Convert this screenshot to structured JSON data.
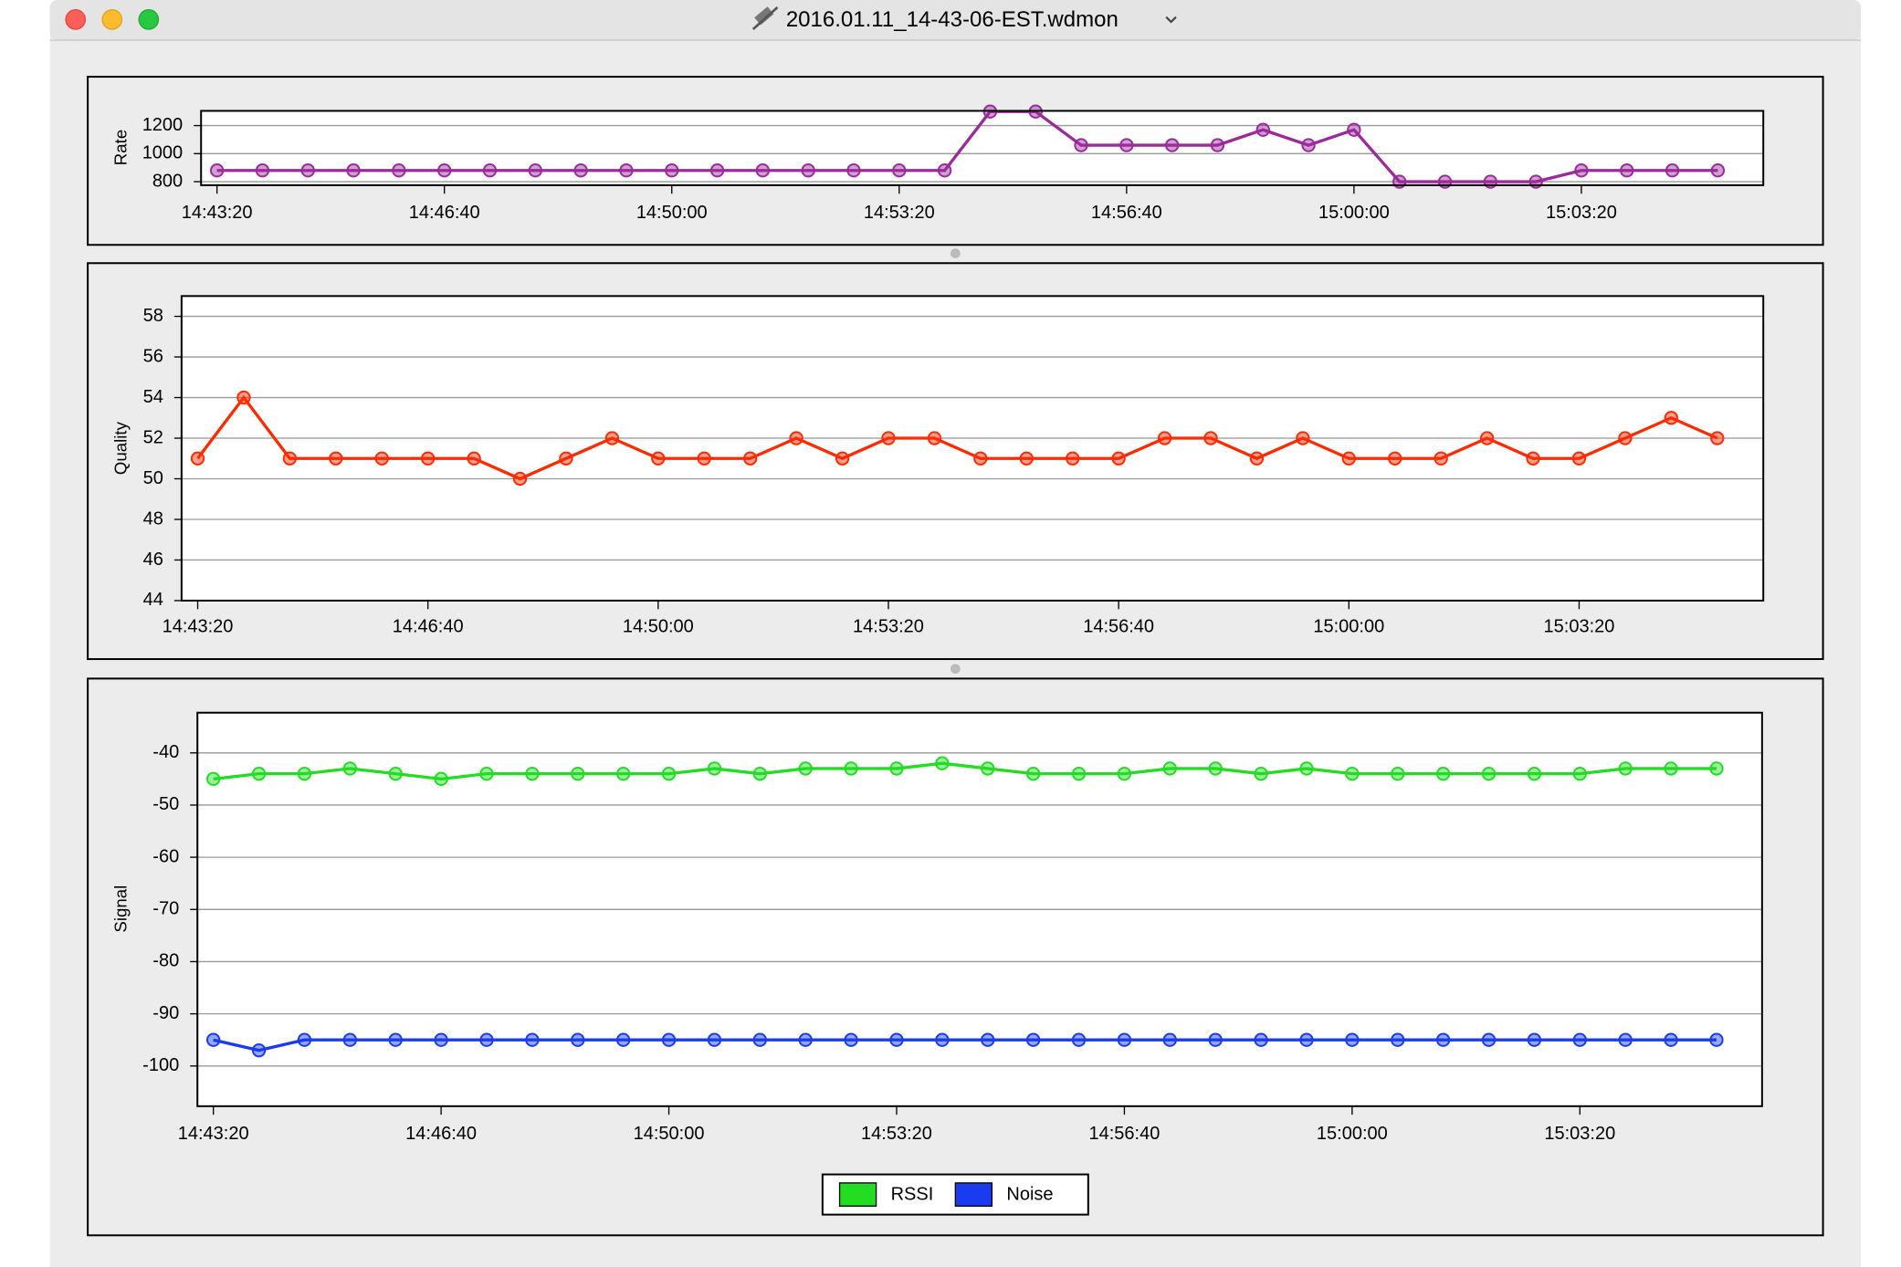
{
  "window": {
    "title": "2016.01.11_14-43-06-EST.wdmon"
  },
  "chart_data": [
    {
      "type": "line",
      "y_label": "Rate",
      "grid": true,
      "x": [
        "14:43:20",
        "14:44:00",
        "14:44:40",
        "14:45:20",
        "14:46:00",
        "14:46:40",
        "14:47:20",
        "14:48:00",
        "14:48:40",
        "14:49:20",
        "14:50:00",
        "14:50:40",
        "14:51:20",
        "14:52:00",
        "14:52:40",
        "14:53:20",
        "14:54:00",
        "14:54:40",
        "14:55:20",
        "14:56:00",
        "14:56:40",
        "14:57:20",
        "14:58:00",
        "14:58:40",
        "14:59:20",
        "15:00:00",
        "15:00:40",
        "15:01:20",
        "15:02:00",
        "15:02:40",
        "15:03:20",
        "15:04:00",
        "15:04:40",
        "15:05:20"
      ],
      "xlim": [
        "14:43:06",
        "15:06:00"
      ],
      "xticks": [
        "14:43:20",
        "14:46:40",
        "14:50:00",
        "14:53:20",
        "14:56:40",
        "15:00:00",
        "15:03:20"
      ],
      "ylim": [
        775,
        1305
      ],
      "yticks": [
        800,
        1000,
        1200
      ],
      "series": [
        {
          "name": "Rate",
          "color": "#9b2a9b",
          "values": [
            880,
            880,
            880,
            880,
            880,
            880,
            880,
            880,
            880,
            880,
            880,
            880,
            880,
            880,
            880,
            880,
            880,
            1300,
            1300,
            1060,
            1060,
            1060,
            1060,
            1170,
            1060,
            1170,
            800,
            800,
            800,
            800,
            880,
            880,
            880,
            880
          ]
        }
      ]
    },
    {
      "type": "line",
      "y_label": "Quality",
      "grid": true,
      "x": [
        "14:43:20",
        "14:44:00",
        "14:44:40",
        "14:45:20",
        "14:46:00",
        "14:46:40",
        "14:47:20",
        "14:48:00",
        "14:48:40",
        "14:49:20",
        "14:50:00",
        "14:50:40",
        "14:51:20",
        "14:52:00",
        "14:52:40",
        "14:53:20",
        "14:54:00",
        "14:54:40",
        "14:55:20",
        "14:56:00",
        "14:56:40",
        "14:57:20",
        "14:58:00",
        "14:58:40",
        "14:59:20",
        "15:00:00",
        "15:00:40",
        "15:01:20",
        "15:02:00",
        "15:02:40",
        "15:03:20",
        "15:04:00",
        "15:04:40",
        "15:05:20"
      ],
      "xlim": [
        "14:43:06",
        "15:06:00"
      ],
      "xticks": [
        "14:43:20",
        "14:46:40",
        "14:50:00",
        "14:53:20",
        "14:56:40",
        "15:00:00",
        "15:03:20"
      ],
      "ylim": [
        44,
        59
      ],
      "yticks": [
        44,
        46,
        48,
        50,
        52,
        54,
        56,
        58
      ],
      "series": [
        {
          "name": "Quality",
          "color": "#ff2a00",
          "values": [
            51,
            54,
            51,
            51,
            51,
            51,
            51,
            50,
            51,
            52,
            51,
            51,
            51,
            52,
            51,
            52,
            52,
            51,
            51,
            51,
            51,
            52,
            52,
            51,
            52,
            51,
            51,
            51,
            52,
            51,
            51,
            52,
            53,
            52
          ]
        }
      ]
    },
    {
      "type": "line",
      "y_label": "Signal",
      "grid": true,
      "legend": "bottom",
      "x": [
        "14:43:20",
        "14:44:00",
        "14:44:40",
        "14:45:20",
        "14:46:00",
        "14:46:40",
        "14:47:20",
        "14:48:00",
        "14:48:40",
        "14:49:20",
        "14:50:00",
        "14:50:40",
        "14:51:20",
        "14:52:00",
        "14:52:40",
        "14:53:20",
        "14:54:00",
        "14:54:40",
        "14:55:20",
        "14:56:00",
        "14:56:40",
        "14:57:20",
        "14:58:00",
        "14:58:40",
        "14:59:20",
        "15:00:00",
        "15:00:40",
        "15:01:20",
        "15:02:00",
        "15:02:40",
        "15:03:20",
        "15:04:00",
        "15:04:40",
        "15:05:20"
      ],
      "xlim": [
        "14:43:06",
        "15:06:00"
      ],
      "xticks": [
        "14:43:20",
        "14:46:40",
        "14:50:00",
        "14:53:20",
        "14:56:40",
        "15:00:00",
        "15:03:20"
      ],
      "ylim": [
        -107.7,
        -32.3
      ],
      "yticks": [
        -100,
        -90,
        -80,
        -70,
        -60,
        -50,
        -40
      ],
      "series": [
        {
          "name": "RSSI",
          "color": "#22dd22",
          "values": [
            -45,
            -44,
            -44,
            -43,
            -44,
            -45,
            -44,
            -44,
            -44,
            -44,
            -44,
            -43,
            -44,
            -43,
            -43,
            -43,
            -42,
            -43,
            -44,
            -44,
            -44,
            -43,
            -43,
            -44,
            -43,
            -44,
            -44,
            -44,
            -44,
            -44,
            -44,
            -43,
            -43,
            -43
          ]
        },
        {
          "name": "Noise",
          "color": "#1a3cf0",
          "values": [
            -95,
            -97,
            -95,
            -95,
            -95,
            -95,
            -95,
            -95,
            -95,
            -95,
            -95,
            -95,
            -95,
            -95,
            -95,
            -95,
            -95,
            -95,
            -95,
            -95,
            -95,
            -95,
            -95,
            -95,
            -95,
            -95,
            -95,
            -95,
            -95,
            -95,
            -95,
            -95,
            -95,
            -95
          ]
        }
      ]
    }
  ]
}
